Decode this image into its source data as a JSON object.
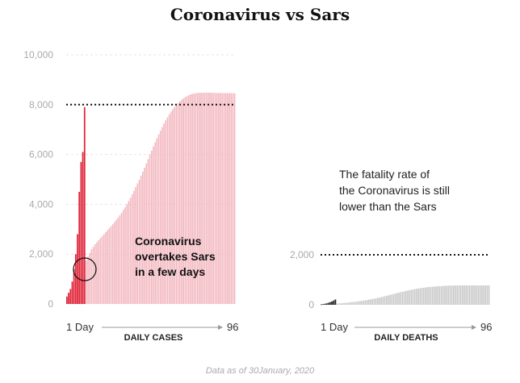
{
  "title": "Coronavirus vs Sars",
  "footnote": "Data as of 30January, 2020",
  "colors": {
    "corona": "#e0263a",
    "sars_cases": "#f2b6be",
    "sars_deaths": "#c8c8c8",
    "corona_deaths": "#222222",
    "gridline": "#e6e6e6"
  },
  "chart_data": [
    {
      "type": "bar",
      "xlabel": "DAILY CASES",
      "x_start_label": "1 Day",
      "x_end_label": "96",
      "x_range": [
        1,
        96
      ],
      "ylim": [
        0,
        10000
      ],
      "yticks": [
        "0",
        "2,000",
        "4,000",
        "6,000",
        "8,000",
        "10,000"
      ],
      "ytick_values": [
        0,
        2000,
        4000,
        6000,
        8000,
        10000
      ],
      "reference_line": 8000,
      "series": [
        {
          "values": [
            300,
            450,
            600,
            900,
            1400,
            2000,
            2800,
            4500,
            5700,
            6100,
            7900
          ]
        },
        {
          "values": [
            150,
            250,
            350,
            500,
            650,
            800,
            950,
            1100,
            1250,
            1400,
            1600,
            1750,
            1900,
            2050,
            2200,
            2300,
            2400,
            2480,
            2560,
            2640,
            2720,
            2800,
            2880,
            2960,
            3040,
            3120,
            3200,
            3290,
            3380,
            3470,
            3560,
            3660,
            3770,
            3880,
            4000,
            4130,
            4260,
            4400,
            4540,
            4690,
            4840,
            4990,
            5150,
            5310,
            5470,
            5640,
            5810,
            5980,
            6150,
            6320,
            6490,
            6650,
            6810,
            6960,
            7100,
            7240,
            7370,
            7490,
            7610,
            7720,
            7820,
            7910,
            7990,
            8060,
            8130,
            8190,
            8250,
            8300,
            8340,
            8380,
            8410,
            8430,
            8450,
            8460,
            8470,
            8475,
            8478,
            8480,
            8481,
            8482,
            8482,
            8480,
            8478,
            8475,
            8472,
            8470,
            8468,
            8466,
            8465,
            8464,
            8463,
            8462,
            8461,
            8460,
            8460,
            8460
          ]
        }
      ],
      "annotation": [
        "Coronavirus",
        "overtakes Sars",
        "in a few days"
      ]
    },
    {
      "type": "bar",
      "xlabel": "DAILY DEATHS",
      "x_start_label": "1 Day",
      "x_end_label": "96",
      "x_range": [
        1,
        96
      ],
      "ylim": [
        0,
        3000
      ],
      "yticks": [
        "0",
        "2,000"
      ],
      "ytick_values": [
        0,
        2000
      ],
      "reference_line": 2000,
      "series": [
        {
          "values": [
            17,
            25,
            41,
            56,
            80,
            106,
            132,
            170,
            213
          ]
        },
        {
          "values": [
            5,
            10,
            15,
            20,
            25,
            30,
            35,
            40,
            45,
            50,
            55,
            60,
            66,
            72,
            78,
            85,
            92,
            100,
            108,
            117,
            126,
            136,
            146,
            157,
            168,
            180,
            192,
            205,
            218,
            232,
            246,
            261,
            276,
            292,
            308,
            325,
            342,
            360,
            378,
            396,
            414,
            432,
            450,
            468,
            486,
            504,
            521,
            538,
            554,
            570,
            585,
            600,
            614,
            627,
            640,
            652,
            663,
            674,
            684,
            693,
            702,
            710,
            717,
            724,
            730,
            736,
            741,
            746,
            750,
            754,
            758,
            761,
            764,
            766,
            768,
            770,
            772,
            773,
            774,
            775,
            775,
            776,
            776,
            776,
            776,
            776,
            776,
            776,
            776,
            776,
            776,
            776,
            776,
            776,
            776,
            774
          ]
        }
      ],
      "annotation": [
        "The fatality rate of",
        "the Coronavirus is still",
        "lower than the Sars"
      ]
    }
  ]
}
